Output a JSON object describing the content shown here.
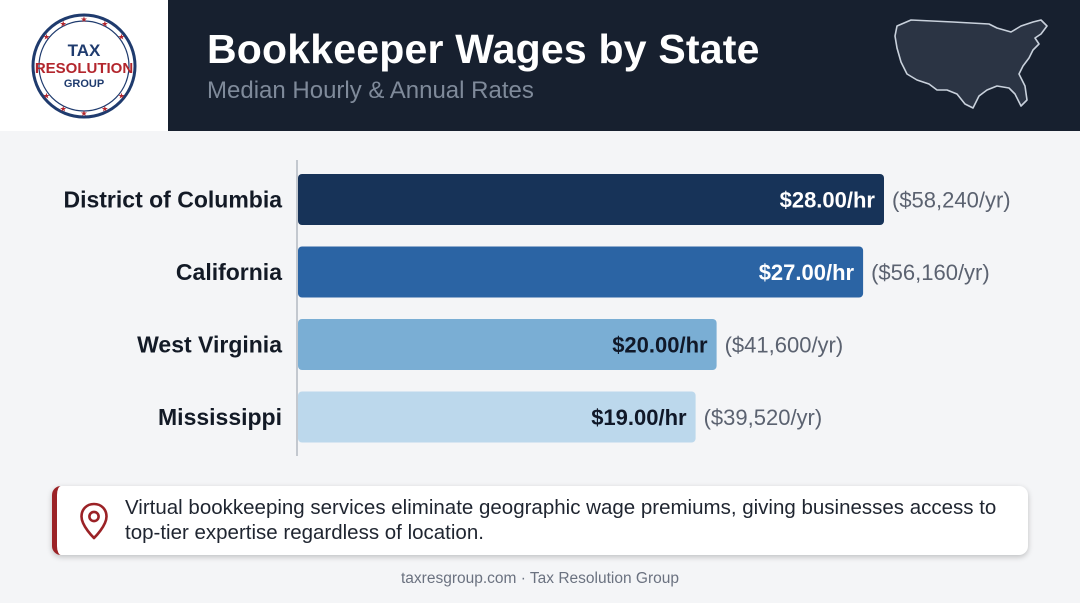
{
  "header": {
    "title": "Bookkeeper Wages by State",
    "subtitle": "Median Hourly & Annual Rates",
    "background_color": "#17202f"
  },
  "logo": {
    "line1": "TAX",
    "line2": "RESOLUTION",
    "line3": "GROUP",
    "ring_color": "#1f3b6e",
    "accent_color": "#b3262d"
  },
  "map_icon": "us-map-icon",
  "chart_data": {
    "type": "bar",
    "orientation": "horizontal",
    "categories": [
      "District of Columbia",
      "California",
      "West Virginia",
      "Mississippi"
    ],
    "values": [
      28.0,
      27.0,
      20.0,
      19.0
    ],
    "value_labels": [
      "$28.00/hr",
      "$27.00/hr",
      "$20.00/hr",
      "$19.00/hr"
    ],
    "annual_labels": [
      "($58,240/yr)",
      "($56,160/yr)",
      "($41,600/yr)",
      "($39,520/yr)"
    ],
    "bar_colors": [
      "#173358",
      "#2b64a4",
      "#7aaed4",
      "#bcd8ec"
    ],
    "label_colors": [
      "#ffffff",
      "#ffffff",
      "#101828",
      "#101828"
    ],
    "xlim": [
      0,
      28.5
    ],
    "grid": false
  },
  "callout": {
    "icon": "location-pin-icon",
    "text": "Virtual bookkeeping services eliminate geographic wage premiums, giving businesses access to top-tier expertise regardless of location.",
    "accent_color": "#9b2226"
  },
  "footer": {
    "text": "taxresgroup.com · Tax Resolution Group"
  }
}
